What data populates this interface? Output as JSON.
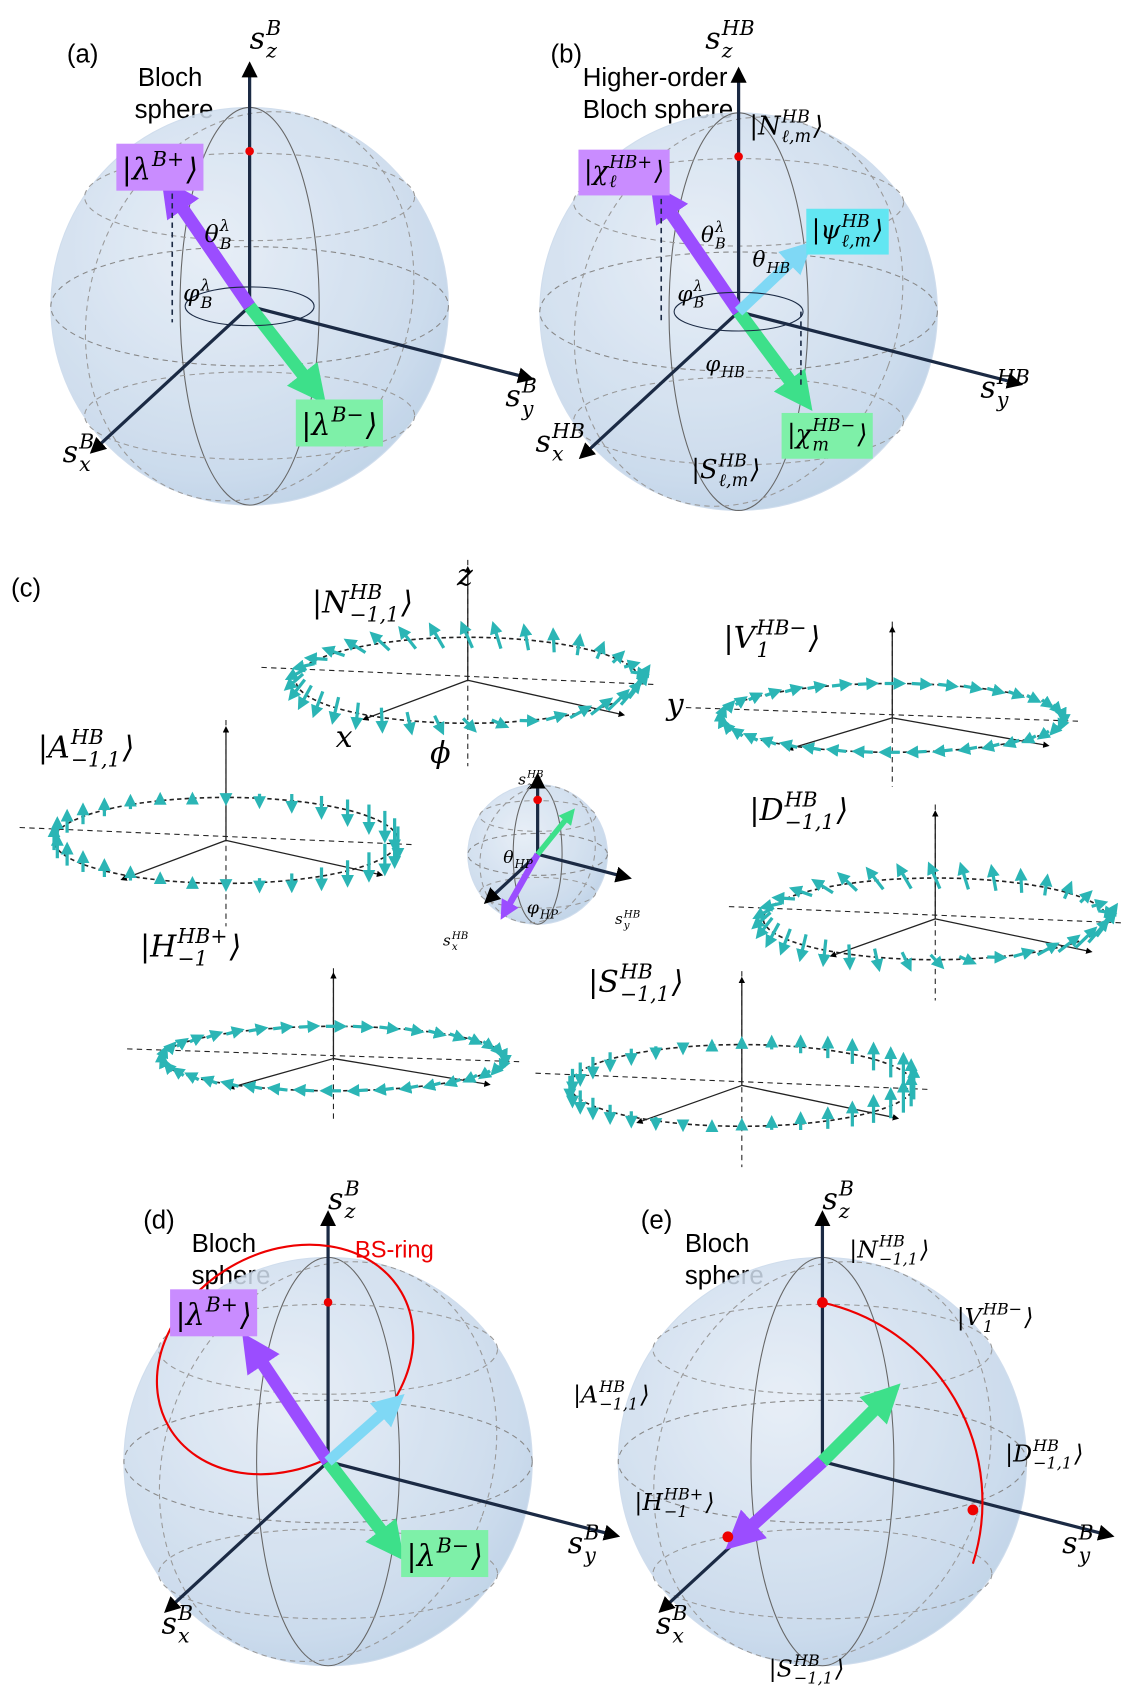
{
  "panel_a": {
    "tag": "(a)",
    "caption": [
      "Bloch",
      "sphere"
    ],
    "labels": [
      {
        "base": "s",
        "sub": "z",
        "sup": "B"
      },
      {
        "base": "s",
        "sub": "y",
        "sup": "B"
      },
      {
        "base": "s",
        "sub": "x",
        "sup": "B"
      },
      {
        "base": "|λ",
        "sup": "B+",
        "end": "⟩"
      },
      {
        "base": "|λ",
        "sup": "B−",
        "end": "⟩"
      },
      {
        "base": "θ",
        "sub": "B",
        "sup": "λ"
      },
      {
        "base": "φ",
        "sub": "B",
        "sup": "λ"
      }
    ]
  },
  "panel_b": {
    "tag": "(b)",
    "caption": [
      "Higher-order",
      "Bloch sphere"
    ],
    "labels": [
      {
        "base": "s",
        "sub": "z",
        "sup": "HB"
      },
      {
        "base": "s",
        "sub": "y",
        "sup": "HB"
      },
      {
        "base": "s",
        "sub": "x",
        "sup": "HB"
      },
      {
        "base": "|N",
        "sub": "ℓ,m",
        "sup": "HB",
        "end": "⟩"
      },
      {
        "base": "|χ",
        "sub": "ℓ",
        "sup": "HB+",
        "end": "⟩"
      },
      {
        "base": "|ψ",
        "sub": "ℓ,m",
        "sup": "HB",
        "end": "⟩"
      },
      {
        "base": "θ",
        "sub": "B",
        "sup": "λ"
      },
      {
        "base": "θ",
        "sub": "HB"
      },
      {
        "base": "φ",
        "sub": "B",
        "sup": "λ"
      },
      {
        "base": "φ",
        "sub": "HB"
      },
      {
        "base": "|χ",
        "sub": "m",
        "sup": "HB−",
        "end": "⟩"
      },
      {
        "base": "|S",
        "sub": "ℓ,m",
        "sup": "HB",
        "end": "⟩"
      }
    ]
  },
  "panel_c": {
    "tag": "(c)",
    "labels": [
      {
        "base": "|N",
        "sub": "−1,1",
        "sup": "HB",
        "end": "⟩"
      },
      {
        "base": "z"
      },
      {
        "base": "y"
      },
      {
        "base": "x"
      },
      {
        "base": "ϕ"
      },
      {
        "base": "|V",
        "sub": "1",
        "sup": "HB−",
        "end": "⟩"
      },
      {
        "base": "|A",
        "sub": "−1,1",
        "sup": "HB",
        "end": "⟩"
      },
      {
        "base": "|D",
        "sub": "−1,1",
        "sup": "HB",
        "end": "⟩"
      },
      {
        "base": "|H",
        "sub": "−1",
        "sup": "HB+",
        "end": "⟩"
      },
      {
        "base": "|S",
        "sub": "−1,1",
        "sup": "HB",
        "end": "⟩"
      },
      {
        "base": "s",
        "sub": "z",
        "sup": "HB"
      },
      {
        "base": "θ",
        "sub": "HP"
      },
      {
        "base": "φ",
        "sub": "HP"
      },
      {
        "base": "s",
        "sub": "y",
        "sup": "HB"
      },
      {
        "base": "s",
        "sub": "x",
        "sup": "HB"
      }
    ]
  },
  "panel_d": {
    "tag": "(d)",
    "caption": [
      "Bloch",
      "sphere"
    ],
    "ring_label": "BS-ring",
    "labels": [
      {
        "base": "s",
        "sub": "z",
        "sup": "B"
      },
      {
        "base": "s",
        "sub": "y",
        "sup": "B"
      },
      {
        "base": "s",
        "sub": "x",
        "sup": "B"
      },
      {
        "base": "|λ",
        "sup": "B+",
        "end": "⟩"
      },
      {
        "base": "|λ",
        "sup": "B−",
        "end": "⟩"
      }
    ]
  },
  "panel_e": {
    "tag": "(e)",
    "caption": [
      "Bloch",
      "sphere"
    ],
    "labels": [
      {
        "base": "s",
        "sub": "z",
        "sup": "B"
      },
      {
        "base": "s",
        "sub": "y",
        "sup": "B"
      },
      {
        "base": "s",
        "sub": "x",
        "sup": "B"
      },
      {
        "base": "|N",
        "sub": "−1,1",
        "sup": "HB",
        "end": "⟩"
      },
      {
        "base": "|V",
        "sub": "1",
        "sup": "HB−",
        "end": "⟩"
      },
      {
        "base": "|A",
        "sub": "−1,1",
        "sup": "HB",
        "end": "⟩"
      },
      {
        "base": "|D",
        "sub": "−1,1",
        "sup": "HB",
        "end": "⟩"
      },
      {
        "base": "|H",
        "sub": "−1",
        "sup": "HB+",
        "end": "⟩"
      },
      {
        "base": "|S",
        "sub": "−1,1",
        "sup": "HB",
        "end": "⟩"
      }
    ]
  }
}
